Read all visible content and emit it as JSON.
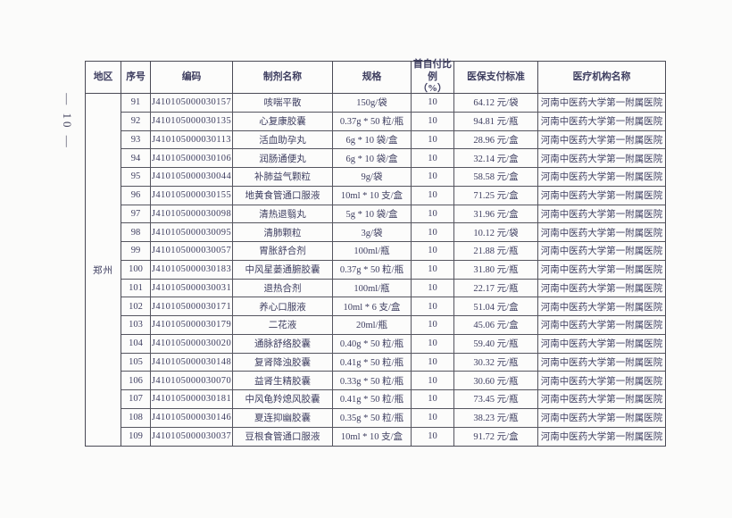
{
  "document": {
    "page_number": "— 10 —"
  },
  "table": {
    "headers": {
      "region": "地区",
      "seq": "序号",
      "code": "编码",
      "name": "制剂名称",
      "ratio": "首自付比例\n（%）",
      "spec": "规格",
      "standard": "医保支付标准",
      "hospital": "医疗机构名称"
    },
    "region": "郑州",
    "rows": [
      {
        "seq": "91",
        "code": "J410105000030157",
        "name": "咳喘平散",
        "spec": "150g/袋",
        "ratio": "10",
        "standard": "64.12 元/袋",
        "hospital": "河南中医药大学第一附属医院"
      },
      {
        "seq": "92",
        "code": "J410105000030135",
        "name": "心复康胶囊",
        "spec": "0.37g * 50 粒/瓶",
        "ratio": "10",
        "standard": "94.81 元/瓶",
        "hospital": "河南中医药大学第一附属医院"
      },
      {
        "seq": "93",
        "code": "J410105000030113",
        "name": "活血助孕丸",
        "spec": "6g * 10 袋/盒",
        "ratio": "10",
        "standard": "28.96 元/盒",
        "hospital": "河南中医药大学第一附属医院"
      },
      {
        "seq": "94",
        "code": "J410105000030106",
        "name": "润肠通便丸",
        "spec": "6g * 10 袋/盒",
        "ratio": "10",
        "standard": "32.14 元/盒",
        "hospital": "河南中医药大学第一附属医院"
      },
      {
        "seq": "95",
        "code": "J410105000030044",
        "name": "补肺益气颗粒",
        "spec": "9g/袋",
        "ratio": "10",
        "standard": "58.58 元/盒",
        "hospital": "河南中医药大学第一附属医院"
      },
      {
        "seq": "96",
        "code": "J410105000030155",
        "name": "地黄食管通口服液",
        "spec": "10ml * 10 支/盒",
        "ratio": "10",
        "standard": "71.25 元/盒",
        "hospital": "河南中医药大学第一附属医院"
      },
      {
        "seq": "97",
        "code": "J410105000030098",
        "name": "清热退翳丸",
        "spec": "5g * 10 袋/盒",
        "ratio": "10",
        "standard": "31.96 元/盒",
        "hospital": "河南中医药大学第一附属医院"
      },
      {
        "seq": "98",
        "code": "J410105000030095",
        "name": "清肺颗粒",
        "spec": "3g/袋",
        "ratio": "10",
        "standard": "10.12 元/袋",
        "hospital": "河南中医药大学第一附属医院"
      },
      {
        "seq": "99",
        "code": "J410105000030057",
        "name": "胃胀舒合剂",
        "spec": "100ml/瓶",
        "ratio": "10",
        "standard": "21.88 元/瓶",
        "hospital": "河南中医药大学第一附属医院"
      },
      {
        "seq": "100",
        "code": "J410105000030183",
        "name": "中风星蒌通腑胶囊",
        "spec": "0.37g * 50 粒/瓶",
        "ratio": "10",
        "standard": "31.80 元/瓶",
        "hospital": "河南中医药大学第一附属医院"
      },
      {
        "seq": "101",
        "code": "J410105000030031",
        "name": "退热合剂",
        "spec": "100ml/瓶",
        "ratio": "10",
        "standard": "22.17 元/瓶",
        "hospital": "河南中医药大学第一附属医院"
      },
      {
        "seq": "102",
        "code": "J410105000030171",
        "name": "养心口服液",
        "spec": "10ml * 6 支/盒",
        "ratio": "10",
        "standard": "51.04 元/盒",
        "hospital": "河南中医药大学第一附属医院"
      },
      {
        "seq": "103",
        "code": "J410105000030179",
        "name": "二花液",
        "spec": "20ml/瓶",
        "ratio": "10",
        "standard": "45.06 元/盒",
        "hospital": "河南中医药大学第一附属医院"
      },
      {
        "seq": "104",
        "code": "J410105000030020",
        "name": "通脉舒络胶囊",
        "spec": "0.40g * 50 粒/瓶",
        "ratio": "10",
        "standard": "59.40 元/瓶",
        "hospital": "河南中医药大学第一附属医院"
      },
      {
        "seq": "105",
        "code": "J410105000030148",
        "name": "复肾降浊胶囊",
        "spec": "0.41g * 50 粒/瓶",
        "ratio": "10",
        "standard": "30.32 元/瓶",
        "hospital": "河南中医药大学第一附属医院"
      },
      {
        "seq": "106",
        "code": "J410105000030070",
        "name": "益肾生精胶囊",
        "spec": "0.33g * 50 粒/瓶",
        "ratio": "10",
        "standard": "30.60 元/瓶",
        "hospital": "河南中医药大学第一附属医院"
      },
      {
        "seq": "107",
        "code": "J410105000030181",
        "name": "中风龟羚熄风胶囊",
        "spec": "0.41g * 50 粒/瓶",
        "ratio": "10",
        "standard": "73.45 元/瓶",
        "hospital": "河南中医药大学第一附属医院"
      },
      {
        "seq": "108",
        "code": "J410105000030146",
        "name": "夏连抑幽胶囊",
        "spec": "0.35g * 50 粒/瓶",
        "ratio": "10",
        "standard": "38.23 元/瓶",
        "hospital": "河南中医药大学第一附属医院"
      },
      {
        "seq": "109",
        "code": "J410105000030037",
        "name": "豆根食管通口服液",
        "spec": "10ml * 10 支/盒",
        "ratio": "10",
        "standard": "91.72 元/盒",
        "hospital": "河南中医药大学第一附属医院"
      }
    ]
  }
}
